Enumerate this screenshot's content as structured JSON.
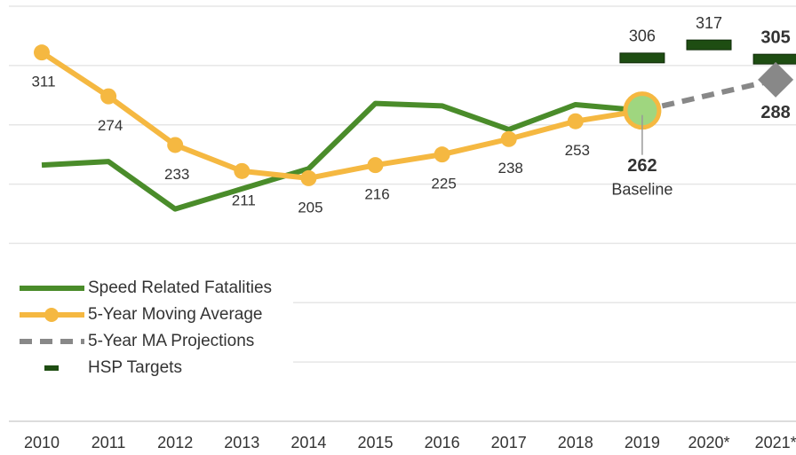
{
  "chart_data": {
    "type": "line",
    "categories": [
      "2010",
      "2011",
      "2012",
      "2013",
      "2014",
      "2015",
      "2016",
      "2017",
      "2018",
      "2019",
      "2020*",
      "2021*"
    ],
    "series": [
      {
        "name": "Speed Related Fatalities",
        "color": "#4a8c2a",
        "values": [
          216,
          219,
          179,
          196,
          213,
          268,
          266,
          246,
          267,
          262,
          null,
          null
        ]
      },
      {
        "name": "5-Year Moving Average",
        "color": "#f5b841",
        "markers": true,
        "labels": true,
        "values": [
          311,
          274,
          233,
          211,
          205,
          216,
          225,
          238,
          253,
          262,
          null,
          null
        ]
      },
      {
        "name": "5-Year MA Projections",
        "color": "#888888",
        "dashed": true,
        "values": [
          null,
          null,
          null,
          null,
          null,
          null,
          null,
          null,
          null,
          262,
          275,
          288
        ]
      },
      {
        "name": "HSP Targets",
        "color": "#1e4d12",
        "style": "target",
        "values": [
          null,
          null,
          null,
          null,
          null,
          null,
          null,
          null,
          null,
          306,
          317,
          305
        ]
      }
    ],
    "annotations": [
      {
        "text": "Baseline",
        "category": "2019"
      }
    ],
    "ylim": [
      0,
      350
    ],
    "yticks": [
      0,
      50,
      100,
      150,
      200,
      250,
      300,
      350
    ],
    "grid": true,
    "legend": "lower left"
  }
}
